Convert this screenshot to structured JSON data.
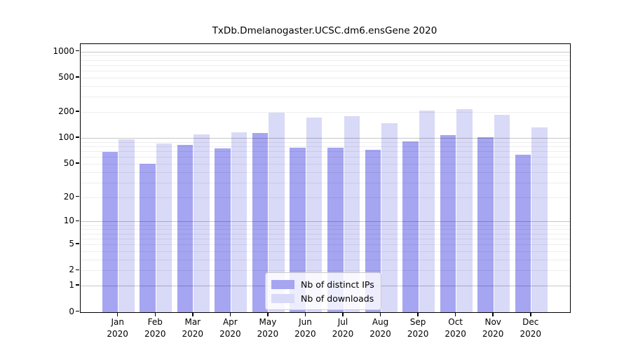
{
  "figure": {
    "title": "TxDb.Dmelanogaster.UCSC.dm6.ensGene 2020"
  },
  "chart_data": {
    "type": "bar",
    "title": "TxDb.Dmelanogaster.UCSC.dm6.ensGene 2020",
    "xlabel": "",
    "ylabel": "",
    "months": [
      "Jan",
      "Feb",
      "Mar",
      "Apr",
      "May",
      "Jun",
      "Jul",
      "Aug",
      "Sep",
      "Oct",
      "Nov",
      "Dec"
    ],
    "year_label": "2020",
    "categories": [
      "Jan 2020",
      "Feb 2020",
      "Mar 2020",
      "Apr 2020",
      "May 2020",
      "Jun 2020",
      "Jul 2020",
      "Aug 2020",
      "Sep 2020",
      "Oct 2020",
      "Nov 2020",
      "Dec 2020"
    ],
    "series": [
      {
        "name": "Nb of distinct IPs",
        "color": "#a5a5f2",
        "values": [
          70,
          50,
          84,
          76,
          115,
          78,
          78,
          74,
          93,
          110,
          104,
          65
        ]
      },
      {
        "name": "Nb of downloads",
        "color": "#d9d9f8",
        "values": [
          97,
          87,
          112,
          118,
          200,
          175,
          182,
          151,
          212,
          219,
          188,
          133
        ]
      }
    ],
    "y_scale": "log1p",
    "y_ticks": [
      0,
      1,
      2,
      5,
      10,
      20,
      50,
      100,
      200,
      500,
      1000
    ],
    "y_minor_gridlines": [
      2,
      3,
      4,
      5,
      6,
      7,
      8,
      9,
      20,
      30,
      40,
      50,
      60,
      70,
      80,
      90,
      200,
      300,
      400,
      500,
      600,
      700,
      800,
      900
    ],
    "y_major_gridlines": [
      1,
      10,
      100,
      1000
    ],
    "ylim": [
      0,
      1200
    ],
    "grid": true,
    "legend_position": "bottom-center",
    "background_color": "#ffffff",
    "text_color": "#000000"
  }
}
